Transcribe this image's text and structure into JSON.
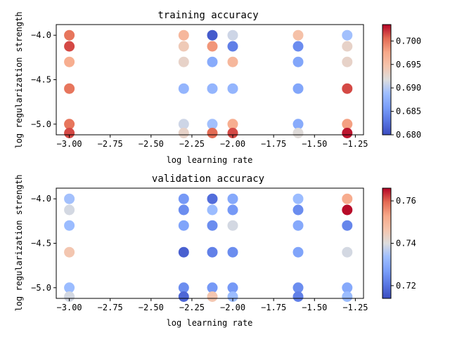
{
  "chart_data": [
    {
      "type": "scatter",
      "title": "training accuracy",
      "xlabel": "log learning rate",
      "ylabel": "log regularization strength",
      "xlim": [
        -3.08,
        -1.2
      ],
      "ylim": [
        -5.12,
        -3.88
      ],
      "xticks": [
        -3.0,
        -2.75,
        -2.5,
        -2.25,
        -2.0,
        -1.75,
        -1.5,
        -1.25
      ],
      "xtick_labels": [
        "−3.00",
        "−2.75",
        "−2.50",
        "−2.25",
        "−2.00",
        "−1.75",
        "−1.50",
        "−1.25"
      ],
      "yticks": [
        -4.0,
        -4.5,
        -5.0
      ],
      "ytick_labels": [
        "−4.0",
        "−4.5",
        "−5.0"
      ],
      "colorbar": {
        "colormap": "coolwarm",
        "vmin": 0.68,
        "vmax": 0.7035,
        "ticks": [
          0.68,
          0.685,
          0.69,
          0.695,
          0.7
        ],
        "tick_labels": [
          "0.680",
          "0.685",
          "0.690",
          "0.695",
          "0.700"
        ]
      },
      "points": [
        {
          "x": -3.0,
          "y": -4.0,
          "value": 0.7
        },
        {
          "x": -3.0,
          "y": -4.125,
          "value": 0.7015
        },
        {
          "x": -3.0,
          "y": -4.3,
          "value": 0.697
        },
        {
          "x": -3.0,
          "y": -4.6,
          "value": 0.7
        },
        {
          "x": -3.0,
          "y": -5.0,
          "value": 0.7
        },
        {
          "x": -3.0,
          "y": -5.1,
          "value": 0.7015
        },
        {
          "x": -2.3,
          "y": -4.0,
          "value": 0.696
        },
        {
          "x": -2.3,
          "y": -4.125,
          "value": 0.694
        },
        {
          "x": -2.3,
          "y": -4.3,
          "value": 0.693
        },
        {
          "x": -2.3,
          "y": -4.6,
          "value": 0.688
        },
        {
          "x": -2.3,
          "y": -5.0,
          "value": 0.691
        },
        {
          "x": -2.3,
          "y": -5.1,
          "value": 0.693
        },
        {
          "x": -2.125,
          "y": -4.0,
          "value": 0.681
        },
        {
          "x": -2.125,
          "y": -4.125,
          "value": 0.6985
        },
        {
          "x": -2.125,
          "y": -4.3,
          "value": 0.687
        },
        {
          "x": -2.125,
          "y": -4.6,
          "value": 0.688
        },
        {
          "x": -2.125,
          "y": -5.0,
          "value": 0.689
        },
        {
          "x": -2.125,
          "y": -5.1,
          "value": 0.7005
        },
        {
          "x": -2.0,
          "y": -4.0,
          "value": 0.691
        },
        {
          "x": -2.0,
          "y": -4.125,
          "value": 0.6835
        },
        {
          "x": -2.0,
          "y": -4.3,
          "value": 0.696
        },
        {
          "x": -2.0,
          "y": -4.6,
          "value": 0.688
        },
        {
          "x": -2.0,
          "y": -5.0,
          "value": 0.697
        },
        {
          "x": -2.0,
          "y": -5.1,
          "value": 0.7015
        },
        {
          "x": -1.6,
          "y": -4.0,
          "value": 0.695
        },
        {
          "x": -1.6,
          "y": -4.125,
          "value": 0.6845
        },
        {
          "x": -1.6,
          "y": -4.3,
          "value": 0.6865
        },
        {
          "x": -1.6,
          "y": -4.6,
          "value": 0.6865
        },
        {
          "x": -1.6,
          "y": -5.0,
          "value": 0.687
        },
        {
          "x": -1.6,
          "y": -5.1,
          "value": 0.692
        },
        {
          "x": -1.3,
          "y": -4.0,
          "value": 0.689
        },
        {
          "x": -1.3,
          "y": -4.125,
          "value": 0.693
        },
        {
          "x": -1.3,
          "y": -4.3,
          "value": 0.693
        },
        {
          "x": -1.3,
          "y": -4.6,
          "value": 0.7015
        },
        {
          "x": -1.3,
          "y": -5.0,
          "value": 0.698
        },
        {
          "x": -1.3,
          "y": -5.1,
          "value": 0.703
        }
      ]
    },
    {
      "type": "scatter",
      "title": "validation accuracy",
      "xlabel": "log learning rate",
      "ylabel": "log regularization strength",
      "xlim": [
        -3.08,
        -1.2
      ],
      "ylim": [
        -5.12,
        -3.88
      ],
      "xticks": [
        -3.0,
        -2.75,
        -2.5,
        -2.25,
        -2.0,
        -1.75,
        -1.5,
        -1.25
      ],
      "xtick_labels": [
        "−3.00",
        "−2.75",
        "−2.50",
        "−2.25",
        "−2.00",
        "−1.75",
        "−1.50",
        "−1.25"
      ],
      "yticks": [
        -4.0,
        -4.5,
        -5.0
      ],
      "ytick_labels": [
        "−4.0",
        "−4.5",
        "−5.0"
      ],
      "colorbar": {
        "colormap": "coolwarm",
        "vmin": 0.714,
        "vmax": 0.766,
        "ticks": [
          0.72,
          0.74,
          0.76
        ],
        "tick_labels": [
          "0.72",
          "0.74",
          "0.76"
        ]
      },
      "points": [
        {
          "x": -3.0,
          "y": -4.0,
          "value": 0.734
        },
        {
          "x": -3.0,
          "y": -4.125,
          "value": 0.739
        },
        {
          "x": -3.0,
          "y": -4.3,
          "value": 0.733
        },
        {
          "x": -3.0,
          "y": -4.6,
          "value": 0.746
        },
        {
          "x": -3.0,
          "y": -5.0,
          "value": 0.733
        },
        {
          "x": -3.0,
          "y": -5.1,
          "value": 0.739
        },
        {
          "x": -2.3,
          "y": -4.0,
          "value": 0.726
        },
        {
          "x": -2.3,
          "y": -4.125,
          "value": 0.724
        },
        {
          "x": -2.3,
          "y": -4.3,
          "value": 0.728
        },
        {
          "x": -2.3,
          "y": -4.6,
          "value": 0.717
        },
        {
          "x": -2.3,
          "y": -5.0,
          "value": 0.724
        },
        {
          "x": -2.3,
          "y": -5.1,
          "value": 0.718
        },
        {
          "x": -2.125,
          "y": -4.0,
          "value": 0.719
        },
        {
          "x": -2.125,
          "y": -4.125,
          "value": 0.733
        },
        {
          "x": -2.125,
          "y": -4.3,
          "value": 0.724
        },
        {
          "x": -2.125,
          "y": -4.6,
          "value": 0.722
        },
        {
          "x": -2.125,
          "y": -5.0,
          "value": 0.726
        },
        {
          "x": -2.125,
          "y": -5.1,
          "value": 0.746
        },
        {
          "x": -2.0,
          "y": -4.0,
          "value": 0.729
        },
        {
          "x": -2.0,
          "y": -4.125,
          "value": 0.726
        },
        {
          "x": -2.0,
          "y": -4.3,
          "value": 0.739
        },
        {
          "x": -2.0,
          "y": -4.6,
          "value": 0.724
        },
        {
          "x": -2.0,
          "y": -5.0,
          "value": 0.726
        },
        {
          "x": -2.0,
          "y": -5.1,
          "value": 0.733
        },
        {
          "x": -1.6,
          "y": -4.0,
          "value": 0.733
        },
        {
          "x": -1.6,
          "y": -4.125,
          "value": 0.724
        },
        {
          "x": -1.6,
          "y": -4.3,
          "value": 0.729
        },
        {
          "x": -1.6,
          "y": -4.6,
          "value": 0.728
        },
        {
          "x": -1.6,
          "y": -5.0,
          "value": 0.724
        },
        {
          "x": -1.6,
          "y": -5.1,
          "value": 0.722
        },
        {
          "x": -1.3,
          "y": -4.0,
          "value": 0.752
        },
        {
          "x": -1.3,
          "y": -4.125,
          "value": 0.7655
        },
        {
          "x": -1.3,
          "y": -4.3,
          "value": 0.723
        },
        {
          "x": -1.3,
          "y": -4.6,
          "value": 0.739
        },
        {
          "x": -1.3,
          "y": -5.0,
          "value": 0.729
        },
        {
          "x": -1.3,
          "y": -5.1,
          "value": 0.733
        }
      ]
    }
  ]
}
